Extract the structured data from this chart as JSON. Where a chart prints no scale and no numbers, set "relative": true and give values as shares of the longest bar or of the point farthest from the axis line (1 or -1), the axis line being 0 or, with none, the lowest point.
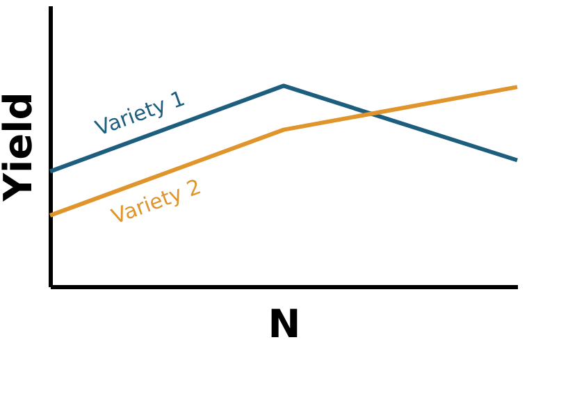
{
  "chart_data": {
    "type": "line",
    "relative": true,
    "xlabel": "N",
    "ylabel": "Yield",
    "categories": [
      null,
      null,
      null
    ],
    "legend": false,
    "grid": false,
    "series": [
      {
        "name": "Variety 1",
        "color": "#1d5e7e",
        "values": [
          0.573,
          1,
          0.629
        ]
      },
      {
        "name": "Variety 2",
        "color": "#df952b",
        "values": [
          0.354,
          0.781,
          0.994
        ]
      }
    ]
  }
}
